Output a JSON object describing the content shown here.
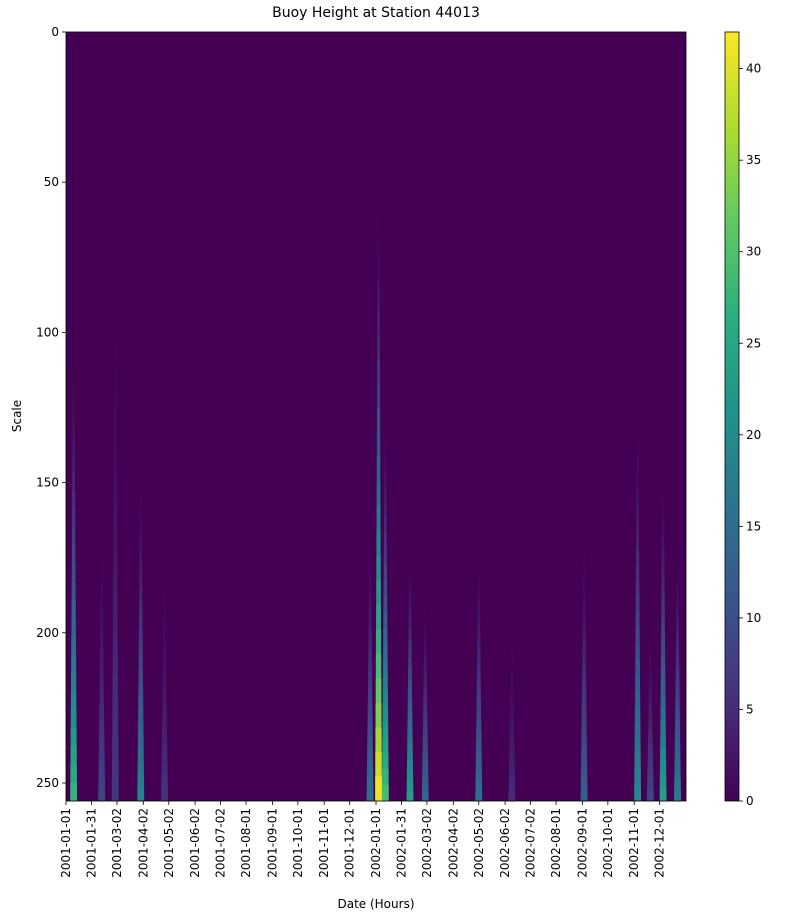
{
  "chart_data": {
    "type": "heatmap",
    "title": "Buoy Height at Station 44013",
    "xlabel": "Date (Hours)",
    "ylabel": "Scale",
    "x_range": [
      "2001-01-01",
      "2002-12-31"
    ],
    "y_range": [
      0,
      256
    ],
    "y_inverted": true,
    "yticks": [
      0,
      50,
      100,
      150,
      200,
      250
    ],
    "xticks": [
      "2001-01-01",
      "2001-01-31",
      "2001-03-02",
      "2001-04-02",
      "2001-05-02",
      "2001-06-02",
      "2001-07-02",
      "2001-08-01",
      "2001-09-01",
      "2001-10-01",
      "2001-11-01",
      "2001-12-01",
      "2002-01-01",
      "2002-01-31",
      "2002-03-02",
      "2002-04-02",
      "2002-05-02",
      "2002-06-02",
      "2002-07-02",
      "2002-08-01",
      "2002-09-01",
      "2002-10-01",
      "2002-11-01",
      "2002-12-01"
    ],
    "colormap": "viridis",
    "colorbar": {
      "min": 0,
      "max": 42,
      "ticks": [
        0,
        5,
        10,
        15,
        20,
        25,
        30,
        35,
        40
      ]
    },
    "hotspots": [
      {
        "date": "2001-01-10",
        "peak": 28,
        "min_scale": 110
      },
      {
        "date": "2001-02-12",
        "peak": 9,
        "min_scale": 170
      },
      {
        "date": "2001-02-28",
        "peak": 7,
        "min_scale": 90
      },
      {
        "date": "2001-03-30",
        "peak": 19,
        "min_scale": 150
      },
      {
        "date": "2001-04-27",
        "peak": 6,
        "min_scale": 180
      },
      {
        "date": "2001-12-25",
        "peak": 16,
        "min_scale": 170
      },
      {
        "date": "2002-01-04",
        "peak": 42,
        "min_scale": 60
      },
      {
        "date": "2002-01-12",
        "peak": 30,
        "min_scale": 130
      },
      {
        "date": "2002-02-10",
        "peak": 24,
        "min_scale": 175
      },
      {
        "date": "2002-02-28",
        "peak": 14,
        "min_scale": 190
      },
      {
        "date": "2002-05-02",
        "peak": 16,
        "min_scale": 175
      },
      {
        "date": "2002-06-10",
        "peak": 5,
        "min_scale": 200
      },
      {
        "date": "2002-09-03",
        "peak": 13,
        "min_scale": 170
      },
      {
        "date": "2002-11-05",
        "peak": 20,
        "min_scale": 130
      },
      {
        "date": "2002-11-20",
        "peak": 9,
        "min_scale": 200
      },
      {
        "date": "2002-12-05",
        "peak": 24,
        "min_scale": 150
      },
      {
        "date": "2002-12-22",
        "peak": 18,
        "min_scale": 175
      }
    ]
  }
}
